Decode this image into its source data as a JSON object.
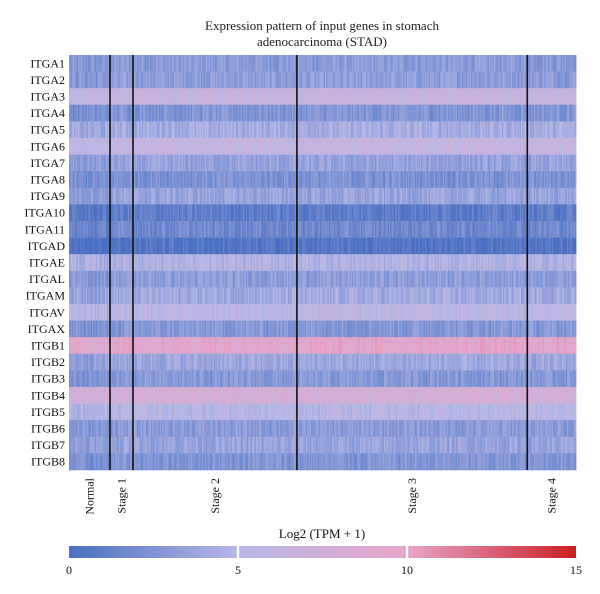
{
  "chart_data": {
    "type": "heatmap",
    "title": "Expression pattern of input genes in stomach adenocarcinoma (STAD)",
    "title_lines": [
      "Expression pattern of input genes in stomach",
      "adenocarcinoma (STAD)"
    ],
    "genes": [
      "ITGA1",
      "ITGA2",
      "ITGA3",
      "ITGA4",
      "ITGA5",
      "ITGA6",
      "ITGA7",
      "ITGA8",
      "ITGA9",
      "ITGA10",
      "ITGA11",
      "ITGAD",
      "ITGAE",
      "ITGAL",
      "ITGAM",
      "ITGAV",
      "ITGAX",
      "ITGB1",
      "ITGB2",
      "ITGB3",
      "ITGB4",
      "ITGB5",
      "ITGB6",
      "ITGB7",
      "ITGB8"
    ],
    "groups": [
      "Normal",
      "Stage 1",
      "Stage 2",
      "Stage 3",
      "Stage 4"
    ],
    "group_sample_counts": [
      32,
      18,
      128,
      180,
      38
    ],
    "gene_mean_log2tpm": [
      3.0,
      3.2,
      6.5,
      2.6,
      4.2,
      6.2,
      3.4,
      2.4,
      3.6,
      1.0,
      1.8,
      0.4,
      4.8,
      3.2,
      4.0,
      5.5,
      2.8,
      9.5,
      3.8,
      2.8,
      7.8,
      5.2,
      3.0,
      3.6,
      2.6
    ],
    "colorbar": {
      "title": "Log2 (TPM + 1)",
      "min": 0,
      "max": 15,
      "ticks": [
        "0",
        "5",
        "10",
        "15"
      ],
      "colors": [
        "#4a6fc2",
        "#b7b8e6",
        "#e7a5c8",
        "#cb1f22"
      ]
    },
    "stage_separators": true
  }
}
